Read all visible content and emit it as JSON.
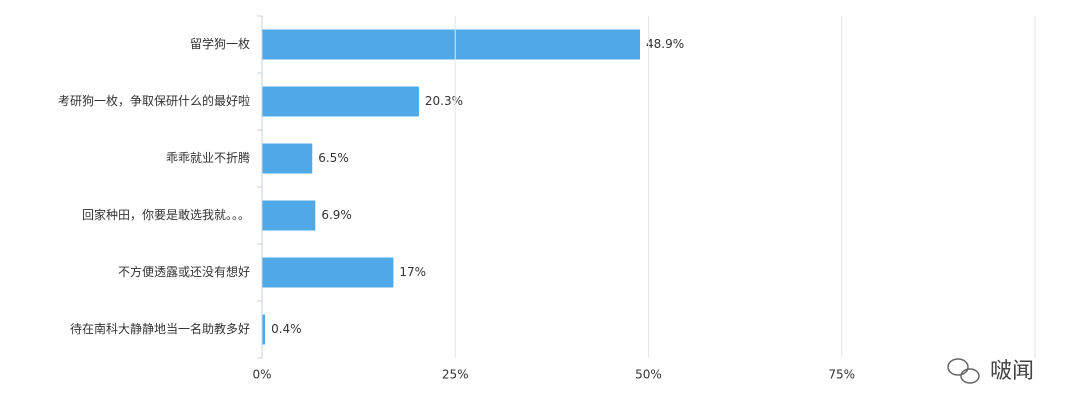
{
  "chart_data": {
    "type": "hbar",
    "categories": [
      "留学狗一枚",
      "考研狗一枚，争取保研什么的最好啦",
      "乖乖就业不折腾",
      "回家种田，你要是敢选我就。。。",
      "不方便透露或还没有想好",
      "待在南科大静静地当一名助教多好"
    ],
    "values": [
      48.9,
      20.3,
      6.5,
      6.9,
      17,
      0.4
    ],
    "value_labels": [
      "48.9%",
      "20.3%",
      "6.5%",
      "6.9%",
      "17%",
      "0.4%"
    ],
    "color": "#4fa8e8",
    "xlim": [
      0,
      100
    ],
    "xticks": [
      {
        "value": 0,
        "label": "0%"
      },
      {
        "value": 25,
        "label": "25%"
      },
      {
        "value": 50,
        "label": "50%"
      },
      {
        "value": 75,
        "label": "75%"
      }
    ],
    "grid": true
  },
  "watermark": "啵闻"
}
